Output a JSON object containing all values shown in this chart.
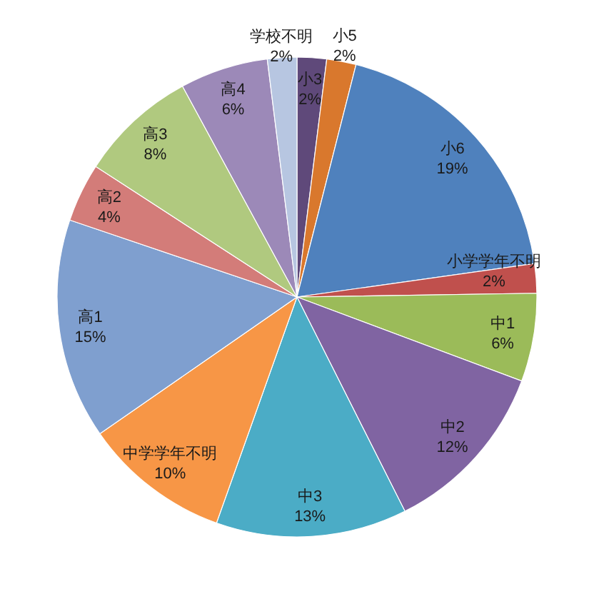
{
  "chart_data": {
    "type": "pie",
    "categories": [
      "小3",
      "小5",
      "小6",
      "小学学年不明",
      "中1",
      "中2",
      "中3",
      "中学学年不明",
      "高1",
      "高2",
      "高3",
      "高4",
      "学校不明"
    ],
    "values": [
      2,
      2,
      19,
      2,
      6,
      12,
      13,
      10,
      15,
      4,
      8,
      6,
      2
    ],
    "value_labels": [
      "2%",
      "2%",
      "19%",
      "2%",
      "6%",
      "12%",
      "13%",
      "10%",
      "15%",
      "4%",
      "8%",
      "6%",
      "2%"
    ],
    "colors": [
      "#5f497a",
      "#d9782d",
      "#4f81bd",
      "#c0504d",
      "#9bbb59",
      "#8064a2",
      "#4bacc6",
      "#f79646",
      "#7f9fcf",
      "#d37c79",
      "#b0c97f",
      "#9c89b8",
      "#b7c6e1"
    ]
  }
}
